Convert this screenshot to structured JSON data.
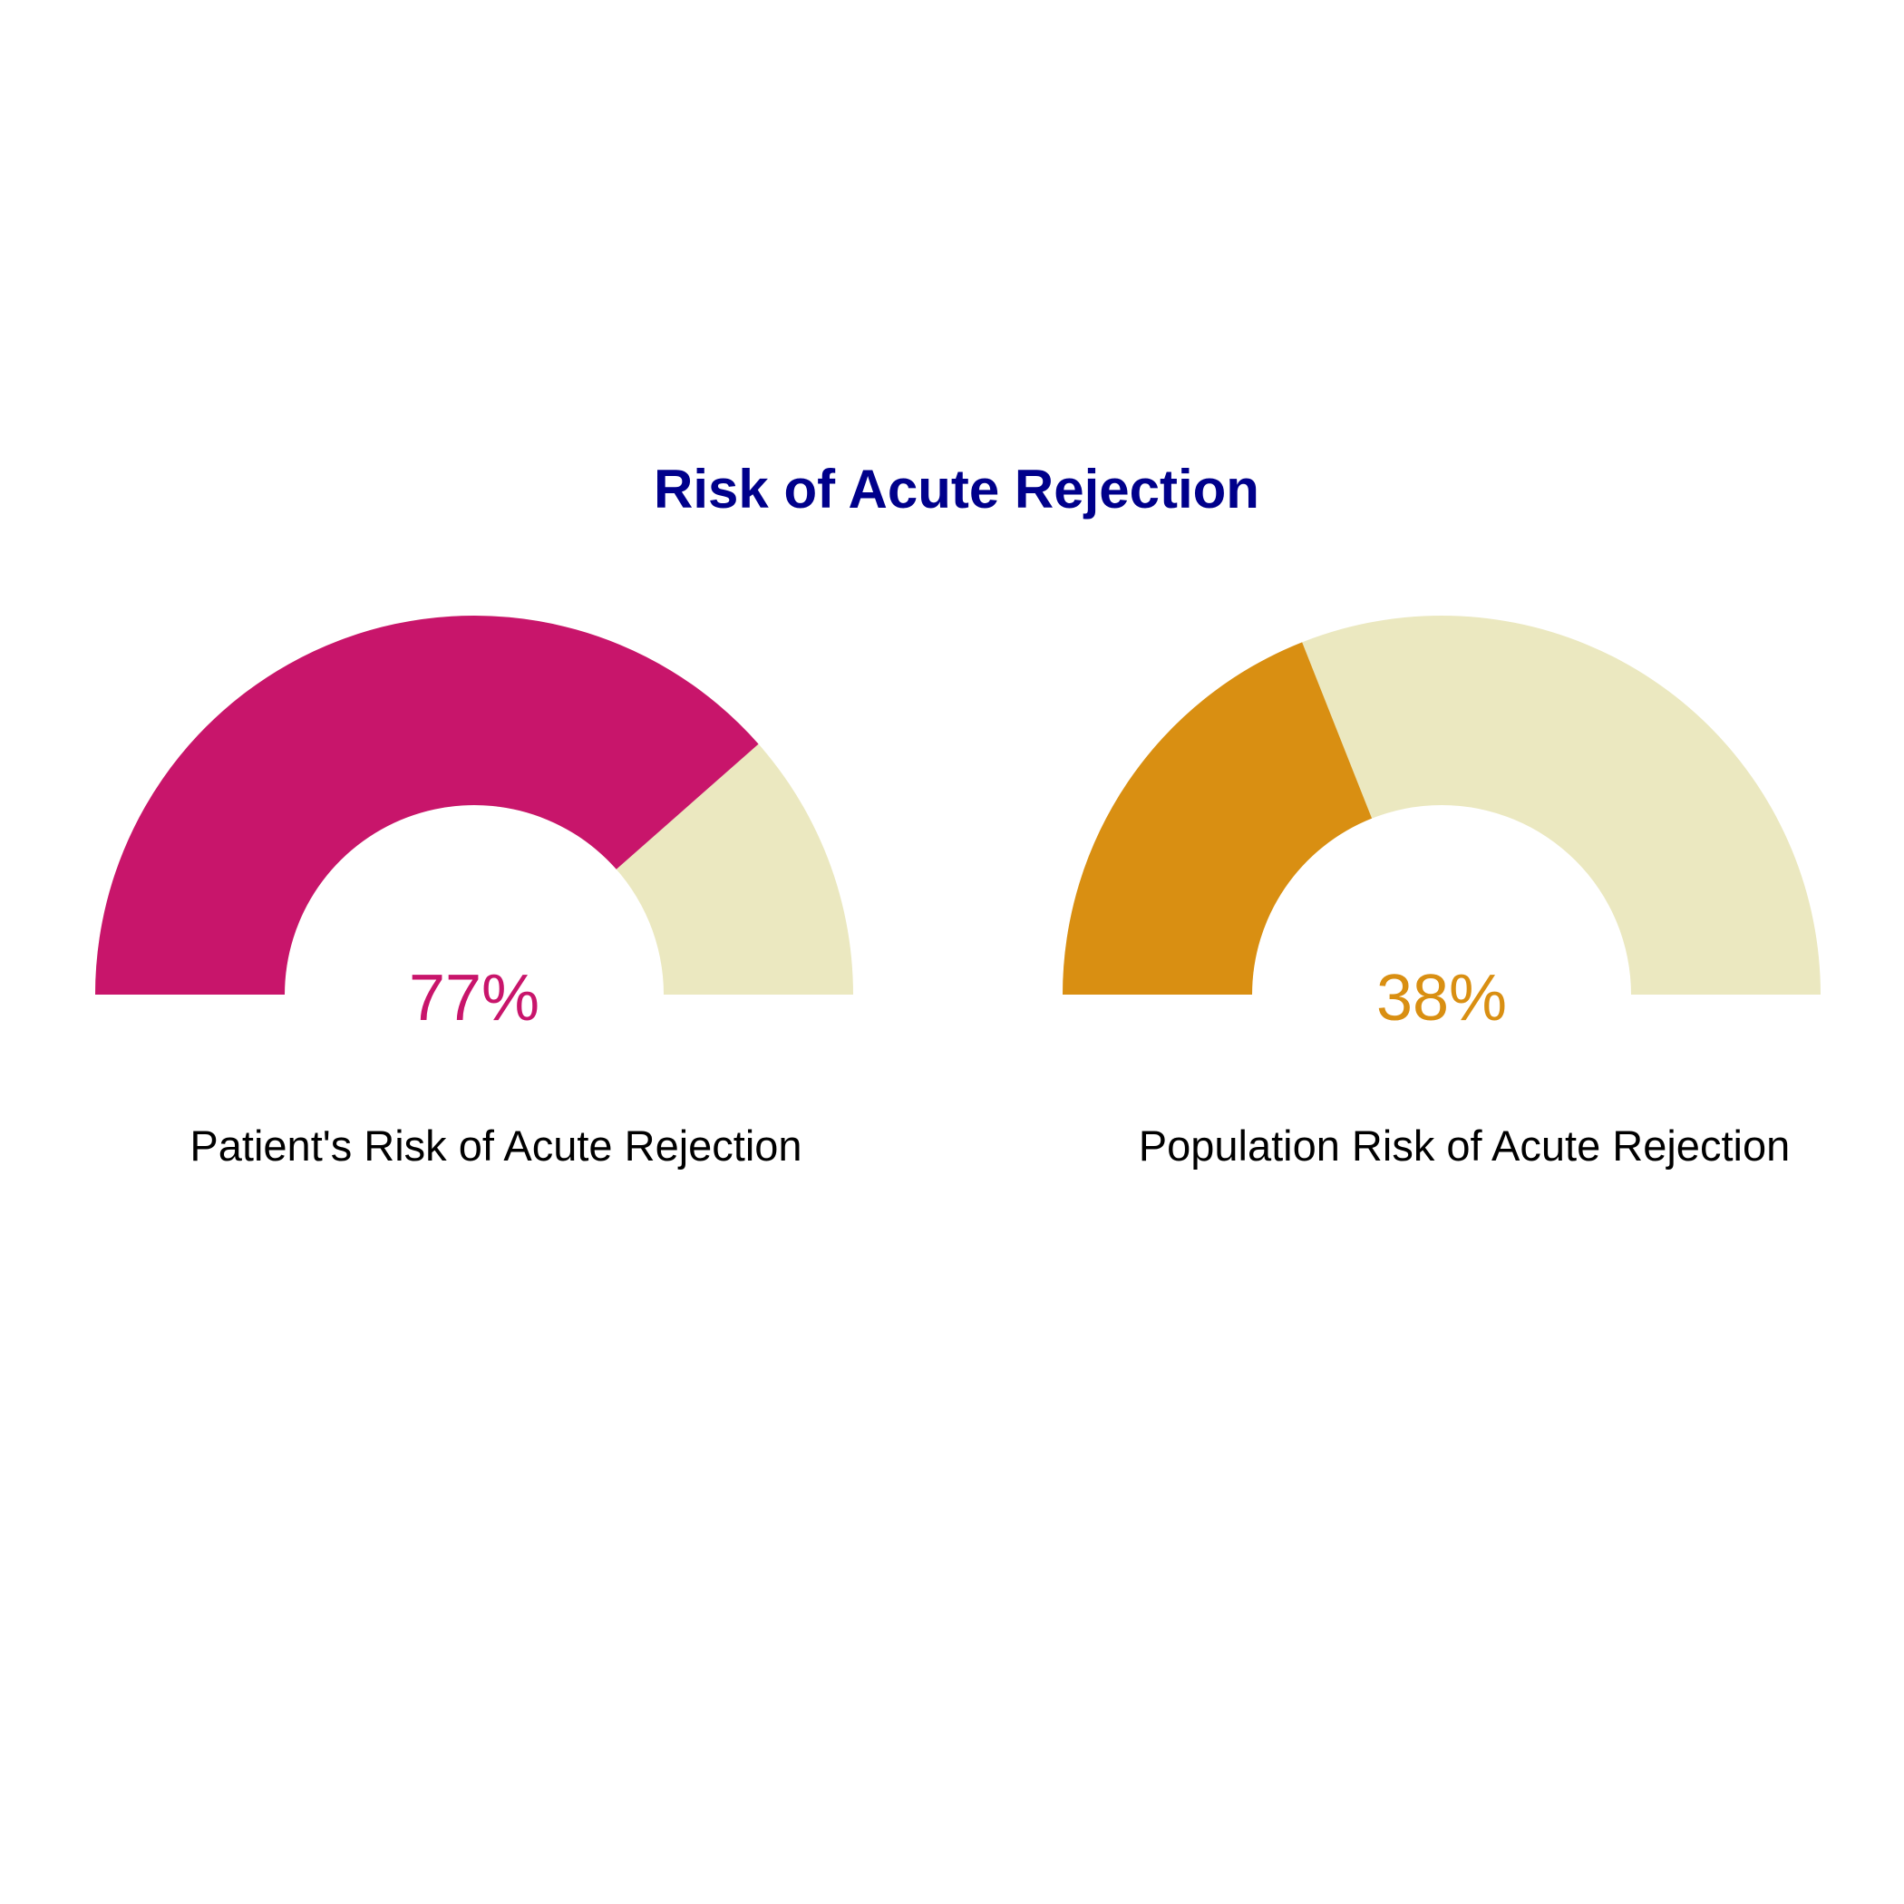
{
  "chart_data": {
    "type": "gauge",
    "title": "Risk of Acute Rejection",
    "title_color": "#00008B",
    "track_color": "#EBE8C0",
    "range": [
      0,
      100
    ],
    "gauges": [
      {
        "label": "Patient's Risk of Acute Rejection",
        "value": 77,
        "display": "77%",
        "color": "#C8156B"
      },
      {
        "label": "Population Risk of Acute Rejection",
        "value": 38,
        "display": "38%",
        "color": "#D98F12"
      }
    ]
  }
}
